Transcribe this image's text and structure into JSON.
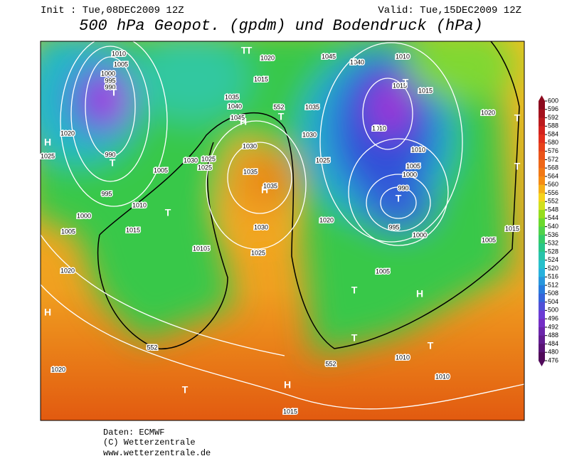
{
  "header": {
    "init": "Init : Tue,08DEC2009 12Z",
    "valid": "Valid: Tue,15DEC2009 12Z",
    "title": "500 hPa Geopot. (gpdm) und Bodendruck (hPa)"
  },
  "map": {
    "labels": [
      "1010",
      "1005",
      "1000",
      "995",
      "990",
      "T",
      "T",
      "1025",
      "1020",
      "H",
      "990",
      "T",
      "995",
      "1000",
      "1005",
      "1010",
      "1005",
      "T",
      "1015",
      "1005",
      "1010",
      "1020",
      "H",
      "1020",
      "552",
      "T",
      "1025",
      "T",
      "1015",
      "1020",
      "1035",
      "1040",
      "1045",
      "H",
      "552",
      "T",
      "1030",
      "1030",
      "1025",
      "1035",
      "H",
      "1035",
      "1030",
      "1025",
      "1045",
      "1040",
      "T",
      "1035",
      "1030",
      "1025",
      "1020",
      "1010",
      "1015",
      "T",
      "1015",
      "1010",
      "T",
      "1010",
      "1005",
      "1000",
      "990",
      "T",
      "995",
      "1000",
      "1020",
      "1015",
      "T",
      "1005",
      "1005",
      "T",
      "H",
      "T",
      "T",
      "1010",
      "1010",
      "552",
      "H",
      "1015",
      "T",
      "T"
    ]
  },
  "colorbar": {
    "ticks": [
      600,
      596,
      592,
      588,
      584,
      580,
      576,
      572,
      568,
      564,
      560,
      556,
      552,
      548,
      544,
      540,
      536,
      532,
      528,
      524,
      520,
      516,
      512,
      508,
      504,
      500,
      496,
      492,
      488,
      484,
      480,
      476
    ]
  },
  "footer": {
    "source": "Daten: ECMWF",
    "copyright": "(C) Wetterzentrale",
    "url": "www.wetterzentrale.de"
  }
}
